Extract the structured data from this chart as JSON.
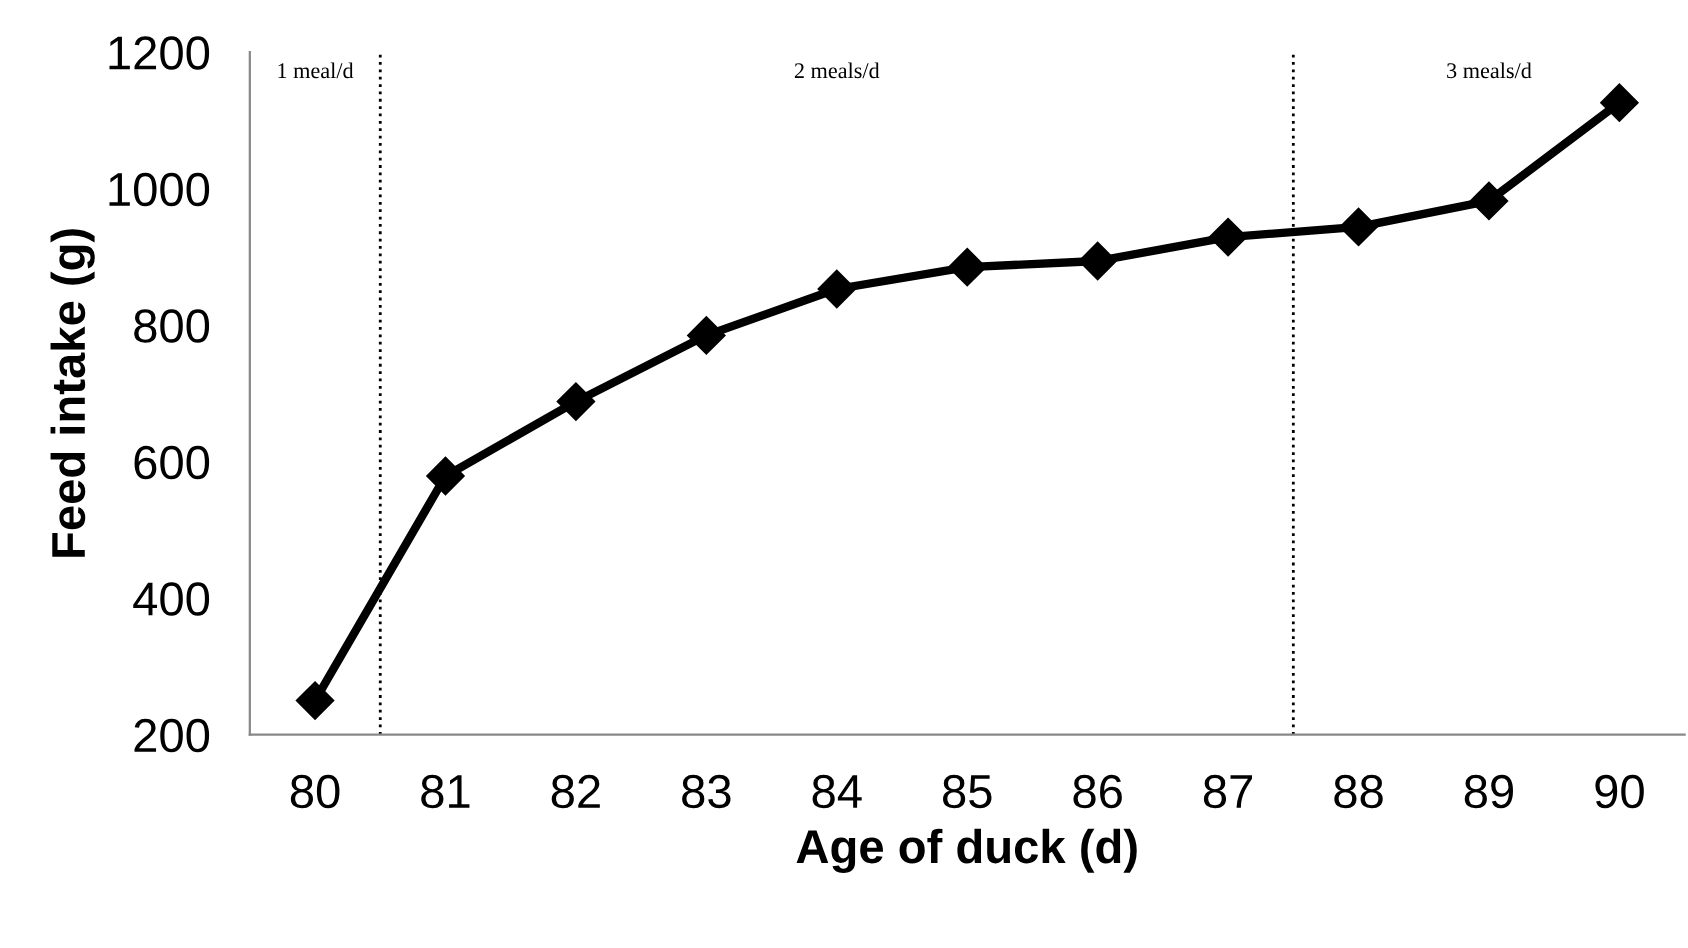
{
  "chart_data": {
    "type": "line",
    "xlabel": "Age of duck (d)",
    "ylabel": "Feed intake (g)",
    "x": [
      80,
      81,
      82,
      83,
      84,
      85,
      86,
      87,
      88,
      89,
      90
    ],
    "series": [
      {
        "color": "#000000",
        "values": [
          250,
          579,
          688,
          785,
          853,
          885,
          894,
          929,
          944,
          982,
          1126
        ]
      }
    ],
    "xlim": [
      79.5,
      90.5
    ],
    "xticks": [
      80,
      81,
      82,
      83,
      84,
      85,
      86,
      87,
      88,
      89,
      90
    ],
    "ylim": [
      200,
      1200
    ],
    "yticks": [
      200,
      400,
      600,
      800,
      1000,
      1200
    ],
    "marker": "diamond",
    "line_style": "solid",
    "grid": false,
    "legend": false,
    "ref_lines": [
      {
        "axis": "x",
        "value": 80.5,
        "color": "#000000",
        "line_style": "dotted"
      },
      {
        "axis": "x",
        "value": 87.5,
        "color": "#000000",
        "line_style": "dotted"
      }
    ],
    "annotations": [
      "1 meal/d",
      "2 meals/d",
      "3 meals/d"
    ]
  }
}
